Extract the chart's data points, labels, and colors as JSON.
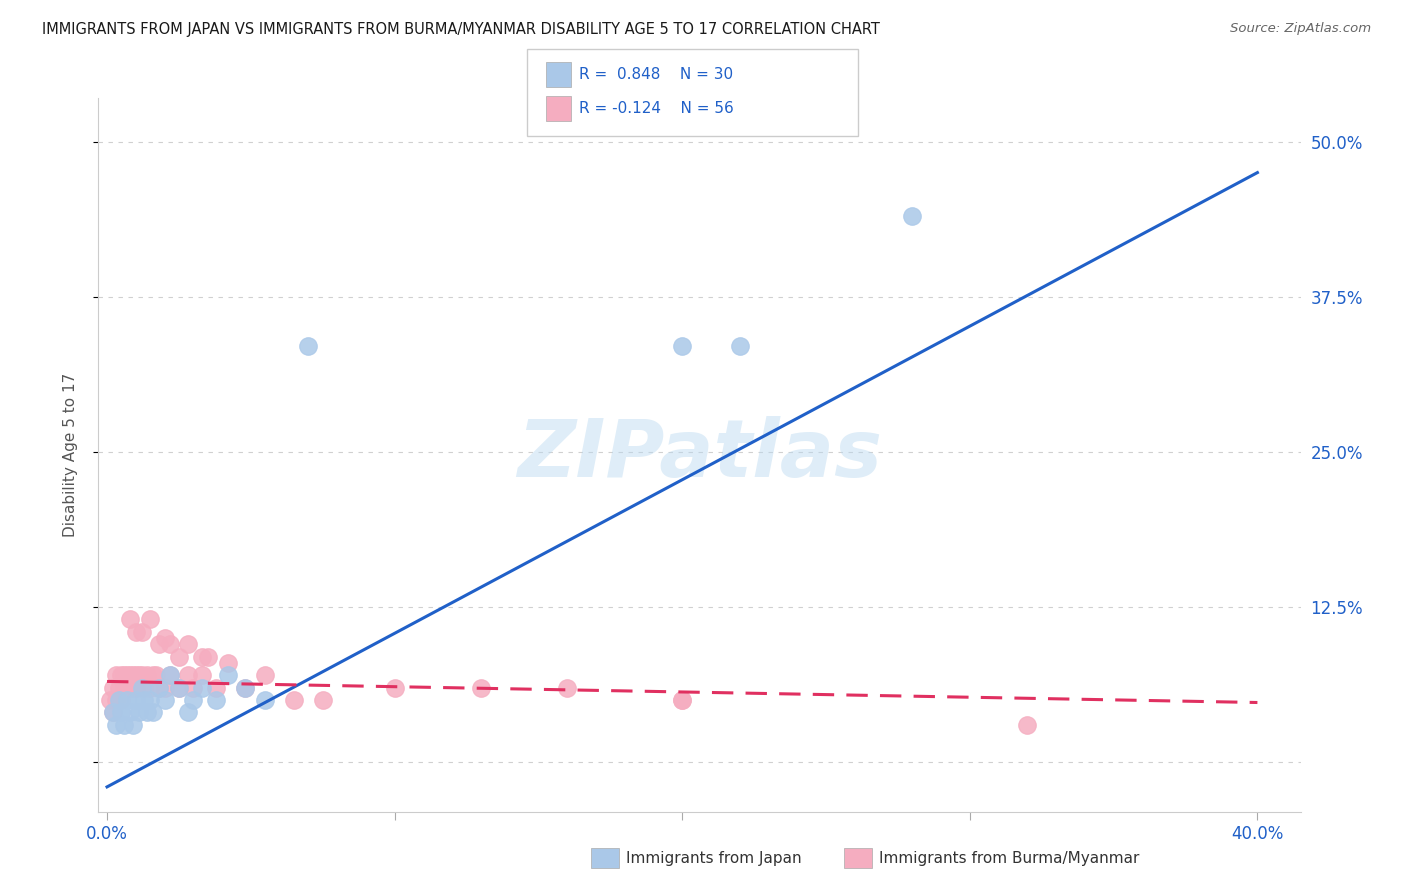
{
  "title": "IMMIGRANTS FROM JAPAN VS IMMIGRANTS FROM BURMA/MYANMAR DISABILITY AGE 5 TO 17 CORRELATION CHART",
  "source": "Source: ZipAtlas.com",
  "ylabel": "Disability Age 5 to 17",
  "xlim": [
    -0.003,
    0.415
  ],
  "ylim": [
    -0.04,
    0.535
  ],
  "ytick_vals": [
    0.0,
    0.125,
    0.25,
    0.375,
    0.5
  ],
  "ytick_labels": [
    "",
    "12.5%",
    "25.0%",
    "37.5%",
    "50.0%"
  ],
  "xtick_vals": [
    0.0,
    0.1,
    0.2,
    0.3,
    0.4
  ],
  "xtick_labels": [
    "0.0%",
    "",
    "",
    "",
    "40.0%"
  ],
  "watermark": "ZIPatlas",
  "japan_color": "#aac8e8",
  "burma_color": "#f5adc0",
  "japan_line_color": "#2060c8",
  "burma_line_color": "#e03060",
  "japan_x": [
    0.002,
    0.003,
    0.004,
    0.005,
    0.006,
    0.007,
    0.008,
    0.009,
    0.01,
    0.011,
    0.012,
    0.013,
    0.014,
    0.015,
    0.016,
    0.018,
    0.02,
    0.022,
    0.025,
    0.028,
    0.03,
    0.033,
    0.038,
    0.042,
    0.048,
    0.055,
    0.07,
    0.2,
    0.22,
    0.28
  ],
  "japan_y": [
    0.04,
    0.03,
    0.05,
    0.04,
    0.03,
    0.05,
    0.04,
    0.03,
    0.05,
    0.04,
    0.06,
    0.05,
    0.04,
    0.05,
    0.04,
    0.06,
    0.05,
    0.07,
    0.06,
    0.04,
    0.05,
    0.06,
    0.05,
    0.07,
    0.06,
    0.05,
    0.335,
    0.335,
    0.335,
    0.44
  ],
  "burma_x": [
    0.001,
    0.002,
    0.002,
    0.003,
    0.003,
    0.004,
    0.004,
    0.005,
    0.005,
    0.006,
    0.006,
    0.007,
    0.007,
    0.008,
    0.008,
    0.009,
    0.009,
    0.01,
    0.01,
    0.011,
    0.012,
    0.013,
    0.014,
    0.015,
    0.016,
    0.017,
    0.018,
    0.02,
    0.022,
    0.025,
    0.028,
    0.03,
    0.033,
    0.038,
    0.042,
    0.048,
    0.055,
    0.065,
    0.075,
    0.1,
    0.13,
    0.16,
    0.2,
    0.008,
    0.01,
    0.012,
    0.015,
    0.018,
    0.022,
    0.028,
    0.033,
    0.02,
    0.025,
    0.035,
    0.2,
    0.32
  ],
  "burma_y": [
    0.05,
    0.04,
    0.06,
    0.05,
    0.07,
    0.05,
    0.06,
    0.05,
    0.07,
    0.06,
    0.07,
    0.06,
    0.07,
    0.06,
    0.07,
    0.06,
    0.07,
    0.06,
    0.07,
    0.07,
    0.07,
    0.06,
    0.07,
    0.06,
    0.07,
    0.07,
    0.06,
    0.06,
    0.07,
    0.06,
    0.07,
    0.06,
    0.07,
    0.06,
    0.08,
    0.06,
    0.07,
    0.05,
    0.05,
    0.06,
    0.06,
    0.06,
    0.05,
    0.115,
    0.105,
    0.105,
    0.115,
    0.095,
    0.095,
    0.095,
    0.085,
    0.1,
    0.085,
    0.085,
    0.05,
    0.03
  ],
  "japan_line_x": [
    0.0,
    0.4
  ],
  "japan_line_y": [
    -0.02,
    0.475
  ],
  "burma_line_x": [
    0.0,
    0.4
  ],
  "burma_line_y": [
    0.065,
    0.048
  ],
  "background_color": "#ffffff",
  "grid_color": "#d0d0d0"
}
